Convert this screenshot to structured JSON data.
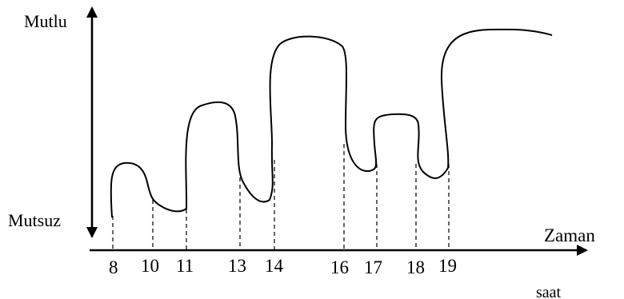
{
  "chart_data": {
    "type": "line",
    "y_top_label": "Mutlu",
    "y_bottom_label": "Mutsuz",
    "x_axis_label": "Zaman",
    "x_unit_label": "saat",
    "time_ticks": [
      "8",
      "10",
      "11",
      "13",
      "14",
      "16",
      "17",
      "18",
      "19"
    ]
  }
}
